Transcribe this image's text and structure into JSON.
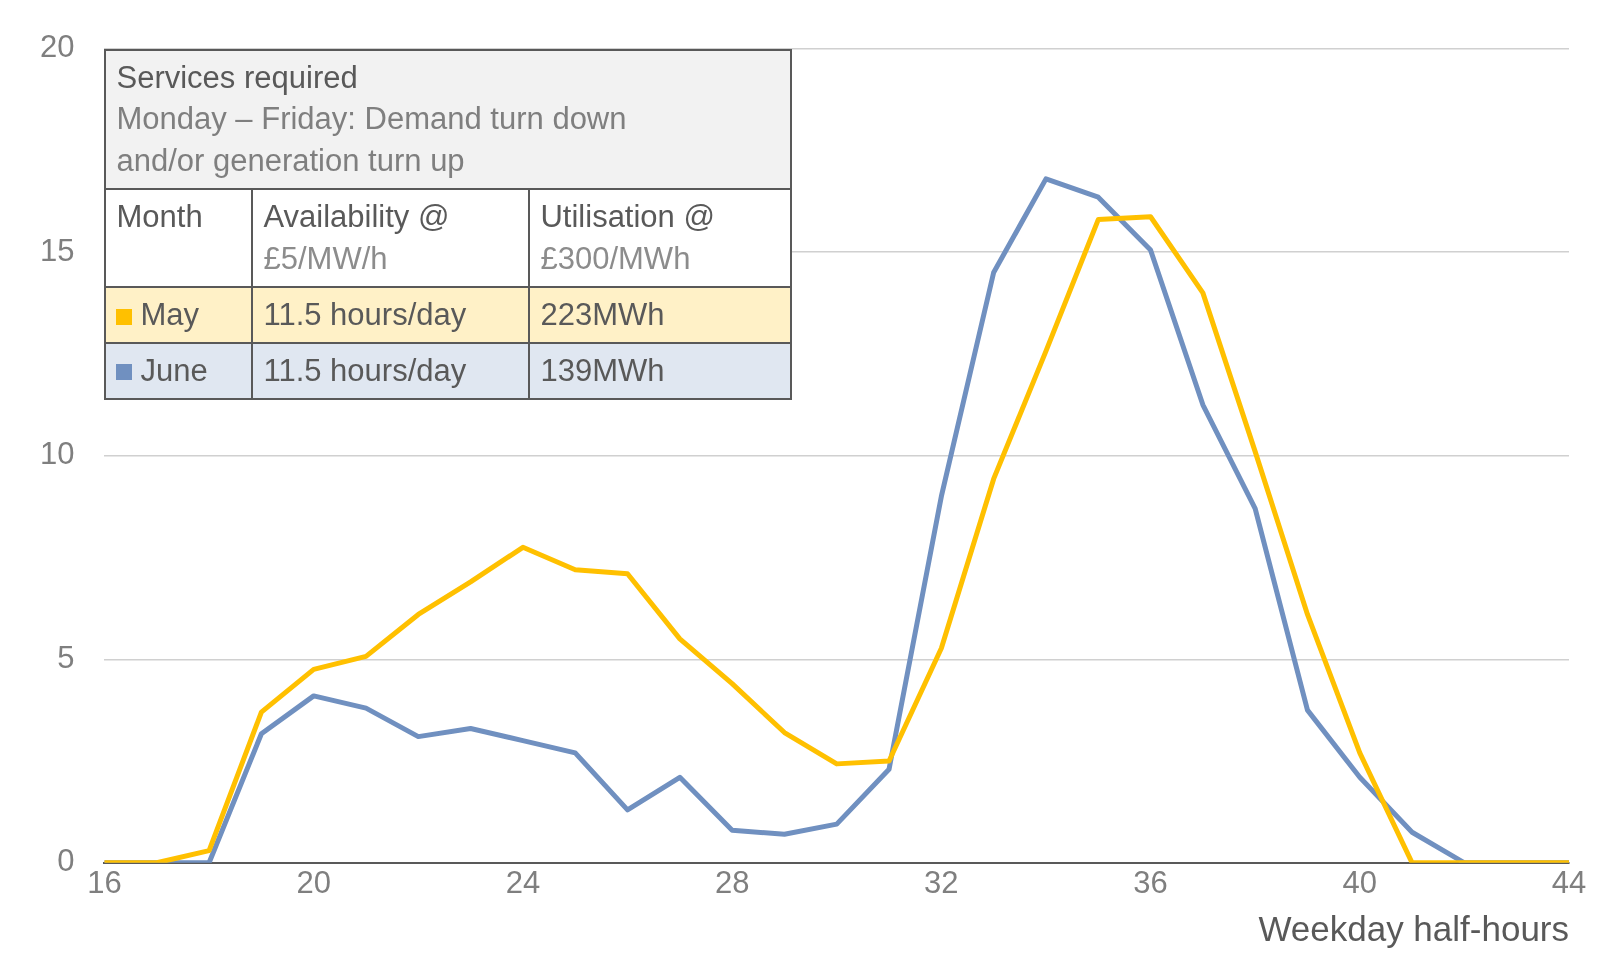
{
  "chart_data": {
    "type": "line",
    "title": "Services required",
    "subtitle": "Monday – Friday: Demand turn down and/or generation turn up",
    "xlabel": "Weekday half-hours",
    "x": [
      16,
      17,
      18,
      19,
      20,
      21,
      22,
      23,
      24,
      25,
      26,
      27,
      28,
      29,
      30,
      31,
      32,
      33,
      34,
      35,
      36,
      37,
      38,
      39,
      40,
      41,
      42,
      43,
      44
    ],
    "series": [
      {
        "name": "May",
        "color": "#ffc000",
        "values": [
          0,
          0,
          0.3,
          3.7,
          4.75,
          5.07,
          6.1,
          6.9,
          7.75,
          7.2,
          7.1,
          5.5,
          4.4,
          3.2,
          2.43,
          2.5,
          5.27,
          9.43,
          12.57,
          15.8,
          15.87,
          14.0,
          10.1,
          6.1,
          2.7,
          0,
          0,
          0,
          0
        ]
      },
      {
        "name": "June",
        "color": "#7090c0",
        "values": [
          0,
          0,
          0,
          3.17,
          4.1,
          3.8,
          3.1,
          3.3,
          3.0,
          2.7,
          1.3,
          2.1,
          0.8,
          0.7,
          0.95,
          2.3,
          9.0,
          14.5,
          16.8,
          16.35,
          15.05,
          11.25,
          8.7,
          3.75,
          2.1,
          0.75,
          0,
          0,
          0
        ]
      }
    ],
    "annotations": [
      "Month",
      "Availability @ £5/MW/h",
      "Utilisation @ £300/MWh",
      "11.5 hours/day",
      "223MWh",
      "11.5 hours/day",
      "139MWh"
    ],
    "xlim": [
      16,
      44
    ],
    "xticks": [
      16,
      20,
      24,
      28,
      32,
      36,
      40,
      44
    ],
    "ylim": [
      0,
      20
    ],
    "yticks": [
      0,
      5,
      10,
      15,
      20
    ],
    "grid": "y",
    "legend": "top left",
    "marker": "none",
    "line_style": "solid"
  }
}
